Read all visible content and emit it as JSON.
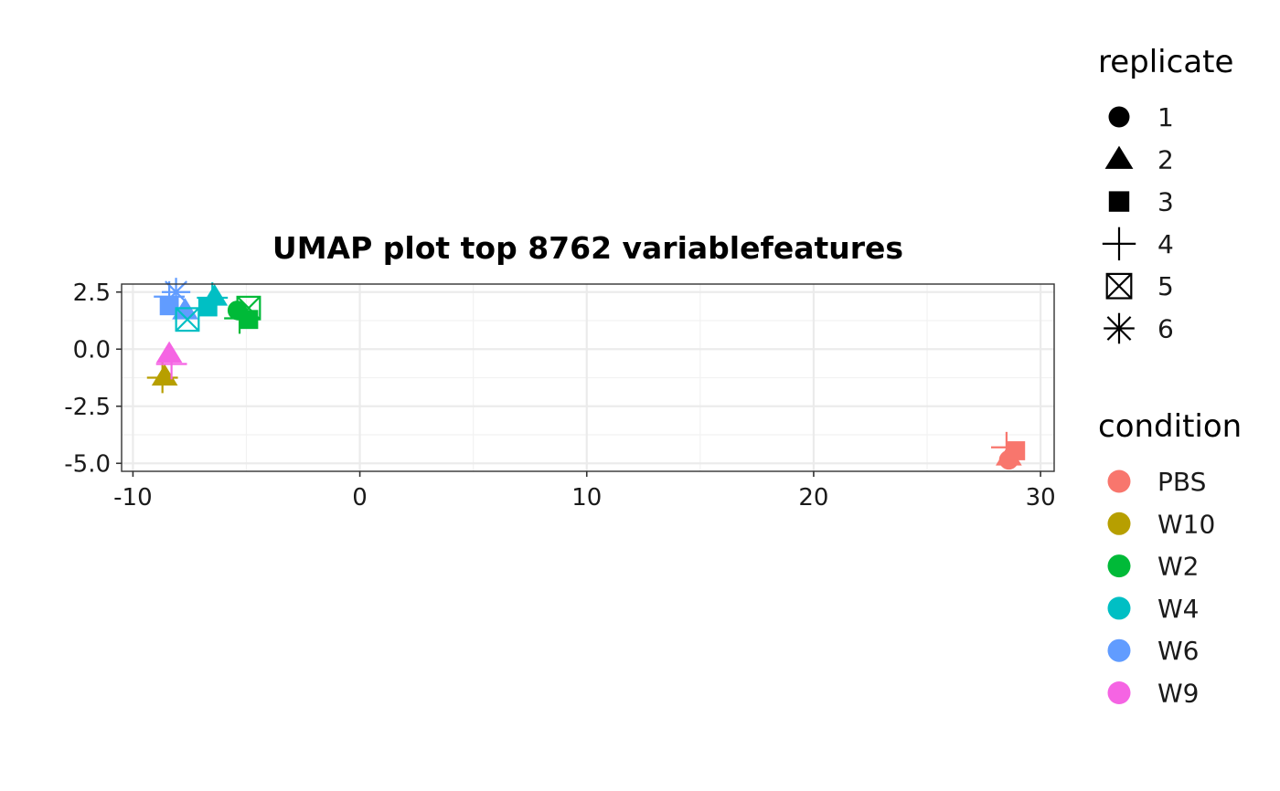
{
  "chart_data": {
    "type": "scatter",
    "title": "UMAP plot top 8762 variablefeatures",
    "xlabel": "",
    "ylabel": "",
    "xlim": [
      -10.5,
      30.6
    ],
    "ylim": [
      -5.35,
      2.85
    ],
    "x_ticks": [
      -10,
      0,
      10,
      20,
      30
    ],
    "x_tick_labels": [
      "-10",
      "0",
      "10",
      "20",
      "30"
    ],
    "y_ticks": [
      -5.0,
      -2.5,
      0.0,
      2.5
    ],
    "y_tick_labels": [
      "-5.0",
      "-2.5",
      "0.0",
      "2.5"
    ],
    "grid": true,
    "legends": {
      "shape": {
        "title": "replicate",
        "entries": [
          {
            "label": "1",
            "shape": "circle"
          },
          {
            "label": "2",
            "shape": "triangle"
          },
          {
            "label": "3",
            "shape": "square"
          },
          {
            "label": "4",
            "shape": "plus"
          },
          {
            "label": "5",
            "shape": "boxed-x"
          },
          {
            "label": "6",
            "shape": "asterisk"
          }
        ]
      },
      "color": {
        "title": "condition",
        "entries": [
          {
            "label": "PBS",
            "color": "#F8766D"
          },
          {
            "label": "W10",
            "color": "#B79F00"
          },
          {
            "label": "W2",
            "color": "#00BA38"
          },
          {
            "label": "W4",
            "color": "#00BFC4"
          },
          {
            "label": "W6",
            "color": "#619CFF"
          },
          {
            "label": "W9",
            "color": "#F564E3"
          }
        ]
      }
    },
    "points": [
      {
        "x": -8.6,
        "y": -1.2,
        "condition": "W10",
        "replicate": "2"
      },
      {
        "x": -8.7,
        "y": -1.25,
        "condition": "W10",
        "replicate": "4"
      },
      {
        "x": -8.4,
        "y": -0.2,
        "condition": "W9",
        "replicate": "2"
      },
      {
        "x": -8.3,
        "y": -0.65,
        "condition": "W9",
        "replicate": "4"
      },
      {
        "x": -8.4,
        "y": 2.3,
        "condition": "W6",
        "replicate": "4"
      },
      {
        "x": -8.1,
        "y": 2.5,
        "condition": "W6",
        "replicate": "6"
      },
      {
        "x": -8.4,
        "y": 1.9,
        "condition": "W6",
        "replicate": "3"
      },
      {
        "x": -7.7,
        "y": 1.7,
        "condition": "W6",
        "replicate": "2"
      },
      {
        "x": -7.6,
        "y": 1.3,
        "condition": "W4",
        "replicate": "5"
      },
      {
        "x": -6.7,
        "y": 1.85,
        "condition": "W4",
        "replicate": "3"
      },
      {
        "x": -6.5,
        "y": 2.25,
        "condition": "W4",
        "replicate": "4"
      },
      {
        "x": -6.4,
        "y": 2.3,
        "condition": "W4",
        "replicate": "2"
      },
      {
        "x": -5.4,
        "y": 1.7,
        "condition": "W2",
        "replicate": "1"
      },
      {
        "x": -5.3,
        "y": 1.35,
        "condition": "W2",
        "replicate": "4"
      },
      {
        "x": -4.9,
        "y": 1.3,
        "condition": "W2",
        "replicate": "3"
      },
      {
        "x": -4.9,
        "y": 1.8,
        "condition": "W2",
        "replicate": "5"
      },
      {
        "x": 28.6,
        "y": -4.85,
        "condition": "PBS",
        "replicate": "1"
      },
      {
        "x": 28.6,
        "y": -4.7,
        "condition": "PBS",
        "replicate": "2"
      },
      {
        "x": 28.5,
        "y": -4.3,
        "condition": "PBS",
        "replicate": "4"
      },
      {
        "x": 28.9,
        "y": -4.45,
        "condition": "PBS",
        "replicate": "3"
      }
    ]
  }
}
